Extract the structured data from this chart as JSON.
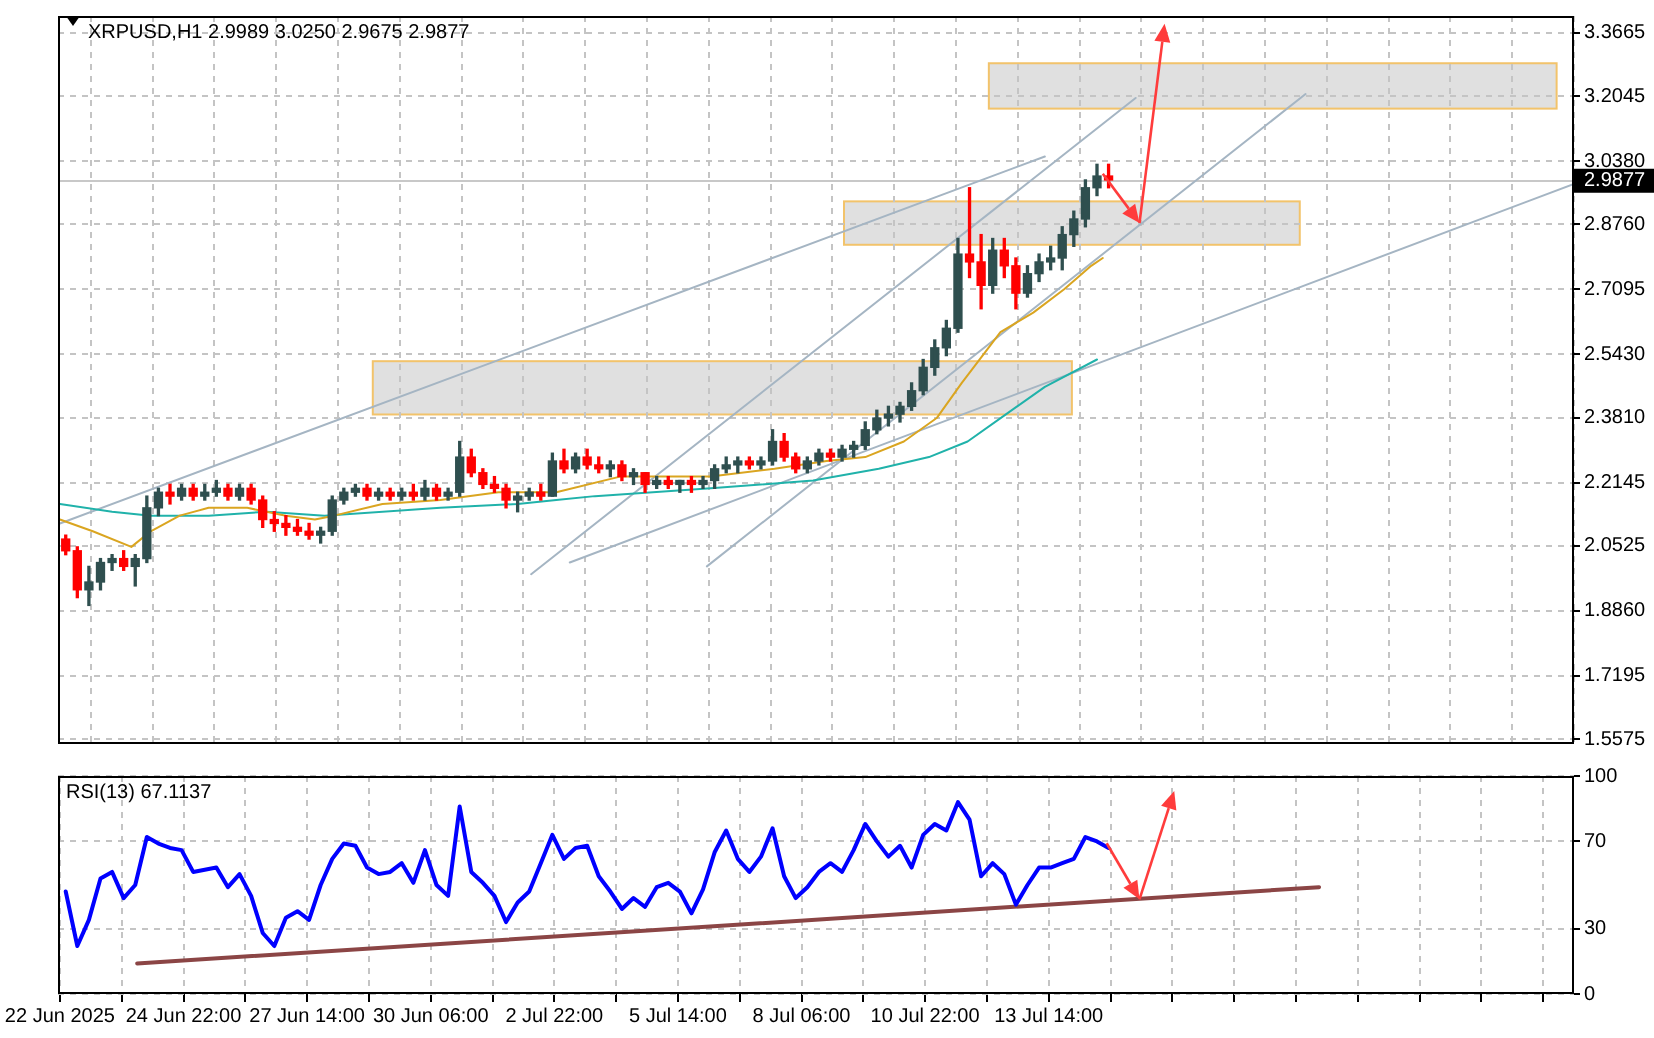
{
  "chart_data": [
    {
      "type": "candlestick",
      "title": "XRPUSD,H1 2.9989 3.0250 2.9675 2.9877",
      "x": [
        "2025-06-22T09:00",
        "2025-06-22T15:00",
        "2025-06-22T21:00",
        "2025-06-23T03:00",
        "2025-06-23T09:00",
        "2025-06-23T15:00",
        "2025-06-23T21:00",
        "2025-06-24T03:00",
        "2025-06-24T09:00",
        "2025-06-24T15:00",
        "2025-06-24T21:00",
        "2025-06-25T03:00",
        "2025-06-25T09:00",
        "2025-06-25T15:00",
        "2025-06-25T21:00",
        "2025-06-26T03:00",
        "2025-06-26T09:00",
        "2025-06-26T15:00",
        "2025-06-26T21:00",
        "2025-06-27T03:00",
        "2025-06-27T09:00",
        "2025-06-27T15:00",
        "2025-06-27T21:00",
        "2025-06-28T03:00",
        "2025-06-28T09:00",
        "2025-06-28T15:00",
        "2025-06-28T21:00",
        "2025-06-29T03:00",
        "2025-06-29T09:00",
        "2025-06-29T15:00",
        "2025-06-29T21:00",
        "2025-06-30T03:00",
        "2025-06-30T09:00",
        "2025-06-30T15:00",
        "2025-06-30T21:00",
        "2025-07-01T03:00",
        "2025-07-01T09:00",
        "2025-07-01T15:00",
        "2025-07-01T21:00",
        "2025-07-02T03:00",
        "2025-07-02T09:00",
        "2025-07-02T15:00",
        "2025-07-02T21:00",
        "2025-07-03T03:00",
        "2025-07-03T09:00",
        "2025-07-03T15:00",
        "2025-07-03T21:00",
        "2025-07-04T03:00",
        "2025-07-04T09:00",
        "2025-07-04T15:00",
        "2025-07-04T21:00",
        "2025-07-05T03:00",
        "2025-07-05T09:00",
        "2025-07-05T15:00",
        "2025-07-05T21:00",
        "2025-07-06T03:00",
        "2025-07-06T09:00",
        "2025-07-06T15:00",
        "2025-07-06T21:00",
        "2025-07-07T03:00",
        "2025-07-07T09:00",
        "2025-07-07T15:00",
        "2025-07-07T21:00",
        "2025-07-08T03:00",
        "2025-07-08T09:00",
        "2025-07-08T15:00",
        "2025-07-08T21:00",
        "2025-07-09T03:00",
        "2025-07-09T09:00",
        "2025-07-09T15:00",
        "2025-07-09T21:00",
        "2025-07-10T03:00",
        "2025-07-10T09:00",
        "2025-07-10T15:00",
        "2025-07-10T21:00",
        "2025-07-11T03:00",
        "2025-07-11T09:00",
        "2025-07-11T15:00",
        "2025-07-11T21:00",
        "2025-07-12T03:00",
        "2025-07-12T09:00",
        "2025-07-12T15:00",
        "2025-07-12T21:00",
        "2025-07-13T03:00",
        "2025-07-13T09:00",
        "2025-07-13T15:00",
        "2025-07-13T21:00",
        "2025-07-14T03:00",
        "2025-07-14T09:00",
        "2025-07-14T15:00",
        "2025-07-14T21:00"
      ],
      "ohlc": [
        [
          2.07,
          2.08,
          2.03,
          2.04
        ],
        [
          2.04,
          2.05,
          1.92,
          1.94
        ],
        [
          1.94,
          2.0,
          1.9,
          1.96
        ],
        [
          1.96,
          2.02,
          1.94,
          2.01
        ],
        [
          2.01,
          2.03,
          1.99,
          2.02
        ],
        [
          2.02,
          2.04,
          1.99,
          2.0
        ],
        [
          2.0,
          2.03,
          1.95,
          2.02
        ],
        [
          2.02,
          2.18,
          2.01,
          2.15
        ],
        [
          2.15,
          2.2,
          2.13,
          2.19
        ],
        [
          2.19,
          2.21,
          2.16,
          2.18
        ],
        [
          2.18,
          2.21,
          2.17,
          2.2
        ],
        [
          2.2,
          2.21,
          2.17,
          2.18
        ],
        [
          2.18,
          2.21,
          2.17,
          2.19
        ],
        [
          2.19,
          2.22,
          2.18,
          2.2
        ],
        [
          2.2,
          2.21,
          2.17,
          2.18
        ],
        [
          2.18,
          2.21,
          2.17,
          2.2
        ],
        [
          2.2,
          2.21,
          2.16,
          2.17
        ],
        [
          2.17,
          2.18,
          2.1,
          2.12
        ],
        [
          2.12,
          2.14,
          2.09,
          2.11
        ],
        [
          2.11,
          2.13,
          2.08,
          2.1
        ],
        [
          2.1,
          2.12,
          2.08,
          2.09
        ],
        [
          2.09,
          2.11,
          2.07,
          2.08
        ],
        [
          2.08,
          2.1,
          2.06,
          2.09
        ],
        [
          2.09,
          2.18,
          2.08,
          2.17
        ],
        [
          2.17,
          2.2,
          2.16,
          2.19
        ],
        [
          2.19,
          2.21,
          2.18,
          2.2
        ],
        [
          2.2,
          2.21,
          2.17,
          2.18
        ],
        [
          2.18,
          2.2,
          2.17,
          2.19
        ],
        [
          2.19,
          2.2,
          2.17,
          2.18
        ],
        [
          2.18,
          2.2,
          2.17,
          2.19
        ],
        [
          2.19,
          2.21,
          2.17,
          2.18
        ],
        [
          2.18,
          2.22,
          2.17,
          2.2
        ],
        [
          2.2,
          2.21,
          2.17,
          2.18
        ],
        [
          2.18,
          2.2,
          2.17,
          2.19
        ],
        [
          2.19,
          2.32,
          2.18,
          2.28
        ],
        [
          2.28,
          2.3,
          2.23,
          2.24
        ],
        [
          2.24,
          2.25,
          2.2,
          2.21
        ],
        [
          2.21,
          2.23,
          2.19,
          2.2
        ],
        [
          2.2,
          2.21,
          2.15,
          2.17
        ],
        [
          2.17,
          2.19,
          2.14,
          2.18
        ],
        [
          2.18,
          2.2,
          2.17,
          2.19
        ],
        [
          2.19,
          2.21,
          2.17,
          2.18
        ],
        [
          2.18,
          2.29,
          2.18,
          2.27
        ],
        [
          2.27,
          2.3,
          2.24,
          2.25
        ],
        [
          2.25,
          2.29,
          2.24,
          2.28
        ],
        [
          2.28,
          2.3,
          2.25,
          2.26
        ],
        [
          2.26,
          2.28,
          2.24,
          2.25
        ],
        [
          2.25,
          2.27,
          2.23,
          2.26
        ],
        [
          2.26,
          2.27,
          2.22,
          2.23
        ],
        [
          2.23,
          2.25,
          2.21,
          2.24
        ],
        [
          2.24,
          2.24,
          2.19,
          2.21
        ],
        [
          2.21,
          2.23,
          2.2,
          2.22
        ],
        [
          2.22,
          2.23,
          2.2,
          2.21
        ],
        [
          2.21,
          2.22,
          2.19,
          2.22
        ],
        [
          2.22,
          2.23,
          2.19,
          2.21
        ],
        [
          2.21,
          2.23,
          2.2,
          2.22
        ],
        [
          2.22,
          2.26,
          2.2,
          2.25
        ],
        [
          2.25,
          2.28,
          2.24,
          2.26
        ],
        [
          2.26,
          2.28,
          2.24,
          2.27
        ],
        [
          2.27,
          2.28,
          2.25,
          2.26
        ],
        [
          2.26,
          2.28,
          2.25,
          2.27
        ],
        [
          2.27,
          2.35,
          2.26,
          2.32
        ],
        [
          2.32,
          2.34,
          2.27,
          2.28
        ],
        [
          2.28,
          2.29,
          2.24,
          2.25
        ],
        [
          2.25,
          2.28,
          2.24,
          2.27
        ],
        [
          2.27,
          2.3,
          2.26,
          2.29
        ],
        [
          2.29,
          2.3,
          2.27,
          2.28
        ],
        [
          2.28,
          2.31,
          2.27,
          2.3
        ],
        [
          2.3,
          2.32,
          2.28,
          2.31
        ],
        [
          2.31,
          2.37,
          2.3,
          2.35
        ],
        [
          2.35,
          2.4,
          2.34,
          2.38
        ],
        [
          2.38,
          2.41,
          2.36,
          2.39
        ],
        [
          2.39,
          2.42,
          2.37,
          2.41
        ],
        [
          2.41,
          2.47,
          2.4,
          2.45
        ],
        [
          2.45,
          2.53,
          2.44,
          2.51
        ],
        [
          2.51,
          2.58,
          2.49,
          2.56
        ],
        [
          2.56,
          2.63,
          2.54,
          2.61
        ],
        [
          2.61,
          2.84,
          2.6,
          2.8
        ],
        [
          2.8,
          2.97,
          2.74,
          2.78
        ],
        [
          2.78,
          2.85,
          2.66,
          2.72
        ],
        [
          2.72,
          2.84,
          2.7,
          2.81
        ],
        [
          2.81,
          2.84,
          2.74,
          2.77
        ],
        [
          2.77,
          2.79,
          2.66,
          2.7
        ],
        [
          2.7,
          2.77,
          2.69,
          2.75
        ],
        [
          2.75,
          2.8,
          2.73,
          2.78
        ],
        [
          2.78,
          2.82,
          2.76,
          2.79
        ],
        [
          2.79,
          2.87,
          2.76,
          2.85
        ],
        [
          2.85,
          2.91,
          2.82,
          2.89
        ],
        [
          2.89,
          2.99,
          2.87,
          2.97
        ],
        [
          2.97,
          3.03,
          2.95,
          3.0
        ],
        [
          3.0,
          3.03,
          2.97,
          2.99
        ]
      ],
      "colors": [
        "#ff0000",
        "#ff0000",
        "#2f4f4f",
        "#2f4f4f",
        "#2f4f4f",
        "#ff0000",
        "#2f4f4f",
        "#2f4f4f",
        "#2f4f4f",
        "#ff0000",
        "#2f4f4f",
        "#ff0000",
        "#2f4f4f",
        "#2f4f4f",
        "#ff0000",
        "#2f4f4f",
        "#ff0000",
        "#ff0000",
        "#ff0000",
        "#ff0000",
        "#ff0000",
        "#ff0000",
        "#2f4f4f",
        "#2f4f4f",
        "#2f4f4f",
        "#2f4f4f",
        "#ff0000",
        "#2f4f4f",
        "#ff0000",
        "#2f4f4f",
        "#ff0000",
        "#2f4f4f",
        "#ff0000",
        "#2f4f4f",
        "#2f4f4f",
        "#ff0000",
        "#ff0000",
        "#ff0000",
        "#ff0000",
        "#2f4f4f",
        "#2f4f4f",
        "#ff0000",
        "#2f4f4f",
        "#ff0000",
        "#2f4f4f",
        "#ff0000",
        "#ff0000",
        "#2f4f4f",
        "#ff0000",
        "#2f4f4f",
        "#ff0000",
        "#2f4f4f",
        "#ff0000",
        "#2f4f4f",
        "#ff0000",
        "#2f4f4f",
        "#2f4f4f",
        "#2f4f4f",
        "#2f4f4f",
        "#ff0000",
        "#2f4f4f",
        "#2f4f4f",
        "#ff0000",
        "#ff0000",
        "#2f4f4f",
        "#2f4f4f",
        "#ff0000",
        "#2f4f4f",
        "#2f4f4f",
        "#2f4f4f",
        "#2f4f4f",
        "#2f4f4f",
        "#2f4f4f",
        "#2f4f4f",
        "#2f4f4f",
        "#2f4f4f",
        "#2f4f4f",
        "#2f4f4f",
        "#ff0000",
        "#ff0000",
        "#2f4f4f",
        "#ff0000",
        "#ff0000",
        "#2f4f4f",
        "#2f4f4f",
        "#2f4f4f",
        "#2f4f4f",
        "#2f4f4f",
        "#2f4f4f",
        "#2f4f4f",
        "#ff0000"
      ],
      "series": [
        {
          "type": "line",
          "color": "#daa520",
          "x": [
            "2025-06-22T06:00",
            "2025-06-22T23:00",
            "2025-06-23T19:00",
            "2025-06-24T05:00",
            "2025-06-24T20:00",
            "2025-06-25T11:00",
            "2025-06-26T07:00",
            "2025-06-27T03:00",
            "2025-06-27T18:00",
            "2025-06-28T04:00",
            "2025-06-29T05:00",
            "2025-06-30T11:00",
            "2025-07-01T17:00",
            "2025-07-02T23:00",
            "2025-07-04T08:00",
            "2025-07-06T07:00",
            "2025-07-07T16:00",
            "2025-07-08T19:00",
            "2025-07-09T15:00",
            "2025-07-10T11:00",
            "2025-07-11T04:00",
            "2025-07-11T17:00",
            "2025-07-12T13:00",
            "2025-07-13T06:00",
            "2025-07-13T22:00",
            "2025-07-14T12:00",
            "2025-07-14T18:00"
          ],
          "values": [
            2.12,
            2.09,
            2.05,
            2.09,
            2.13,
            2.15,
            2.15,
            2.13,
            2.12,
            2.13,
            2.16,
            2.17,
            2.19,
            2.19,
            2.23,
            2.23,
            2.25,
            2.27,
            2.28,
            2.32,
            2.38,
            2.47,
            2.6,
            2.65,
            2.71,
            2.77,
            2.79
          ]
        },
        {
          "type": "line",
          "color": "#20b2aa",
          "x": [
            "2025-06-22T06:00",
            "2025-06-23T09:00",
            "2025-06-24T05:00",
            "2025-06-25T11:00",
            "2025-06-26T17:00",
            "2025-06-27T23:00",
            "2025-06-30T11:00",
            "2025-07-02T03:00",
            "2025-07-02T23:00",
            "2025-07-03T19:00",
            "2025-07-06T07:00",
            "2025-07-08T12:00",
            "2025-07-09T22:00",
            "2025-07-11T00:00",
            "2025-07-11T20:00",
            "2025-07-12T16:00",
            "2025-07-13T12:00",
            "2025-07-14T15:00"
          ],
          "values": [
            2.16,
            2.14,
            2.13,
            2.13,
            2.14,
            2.13,
            2.15,
            2.16,
            2.17,
            2.18,
            2.2,
            2.22,
            2.25,
            2.28,
            2.32,
            2.39,
            2.46,
            2.53
          ]
        },
        {
          "type": "line",
          "color": "#a5b5c3",
          "x": [
            "2025-06-22T06:00",
            "2025-07-13T12:00"
          ],
          "values": [
            2.11,
            3.05
          ]
        },
        {
          "type": "line",
          "color": "#a5b5c3",
          "x": [
            "2025-07-02T10:00",
            "2025-07-15T11:00"
          ],
          "values": [
            1.98,
            3.2
          ]
        },
        {
          "type": "line",
          "color": "#a5b5c3",
          "x": [
            "2025-07-06T05:00",
            "2025-07-19T03:00"
          ],
          "values": [
            2.0,
            3.21
          ]
        },
        {
          "type": "line",
          "color": "#a5b5c3",
          "x": [
            "2025-07-03T06:00",
            "2025-07-24T22:00"
          ],
          "values": [
            2.01,
            2.98
          ]
        }
      ],
      "xlim": [
        "2025-06-22T05:00",
        "2025-07-24T22:00"
      ],
      "ylim": [
        1.545,
        3.41
      ],
      "yticks": [
        1.5575,
        1.7195,
        {
          "value": 1.886,
          "label": "1.8860"
        },
        2.0525,
        2.2145,
        {
          "value": 2.381,
          "label": "2.3810"
        },
        {
          "value": 2.543,
          "label": "2.5430"
        },
        2.7095,
        {
          "value": 2.876,
          "label": "2.8760"
        },
        {
          "value": 3.038,
          "label": "3.0380"
        },
        3.2045,
        3.3665
      ],
      "ref_lines": [
        {
          "axis": "y",
          "value": 2.9877,
          "label": "2.9877",
          "color": "#c8c8c8"
        }
      ],
      "grid": true,
      "tick_labels": "y"
    },
    {
      "type": "line",
      "title": "RSI(13) 67.1137",
      "x": [
        "2025-06-22T09:00",
        "2025-06-22T15:00",
        "2025-06-22T21:00",
        "2025-06-23T03:00",
        "2025-06-23T09:00",
        "2025-06-23T15:00",
        "2025-06-23T21:00",
        "2025-06-24T03:00",
        "2025-06-24T09:00",
        "2025-06-24T15:00",
        "2025-06-24T21:00",
        "2025-06-25T03:00",
        "2025-06-25T09:00",
        "2025-06-25T15:00",
        "2025-06-25T21:00",
        "2025-06-26T03:00",
        "2025-06-26T09:00",
        "2025-06-26T15:00",
        "2025-06-26T21:00",
        "2025-06-27T03:00",
        "2025-06-27T09:00",
        "2025-06-27T15:00",
        "2025-06-27T21:00",
        "2025-06-28T03:00",
        "2025-06-28T09:00",
        "2025-06-28T15:00",
        "2025-06-28T21:00",
        "2025-06-29T03:00",
        "2025-06-29T09:00",
        "2025-06-29T15:00",
        "2025-06-29T21:00",
        "2025-06-30T03:00",
        "2025-06-30T09:00",
        "2025-06-30T15:00",
        "2025-06-30T21:00",
        "2025-07-01T03:00",
        "2025-07-01T09:00",
        "2025-07-01T15:00",
        "2025-07-01T21:00",
        "2025-07-02T03:00",
        "2025-07-02T09:00",
        "2025-07-02T15:00",
        "2025-07-02T21:00",
        "2025-07-03T03:00",
        "2025-07-03T09:00",
        "2025-07-03T15:00",
        "2025-07-03T21:00",
        "2025-07-04T03:00",
        "2025-07-04T09:00",
        "2025-07-04T15:00",
        "2025-07-04T21:00",
        "2025-07-05T03:00",
        "2025-07-05T09:00",
        "2025-07-05T15:00",
        "2025-07-05T21:00",
        "2025-07-06T03:00",
        "2025-07-06T09:00",
        "2025-07-06T15:00",
        "2025-07-06T21:00",
        "2025-07-07T03:00",
        "2025-07-07T09:00",
        "2025-07-07T15:00",
        "2025-07-07T21:00",
        "2025-07-08T03:00",
        "2025-07-08T09:00",
        "2025-07-08T15:00",
        "2025-07-08T21:00",
        "2025-07-09T03:00",
        "2025-07-09T09:00",
        "2025-07-09T15:00",
        "2025-07-09T21:00",
        "2025-07-10T03:00",
        "2025-07-10T09:00",
        "2025-07-10T15:00",
        "2025-07-10T21:00",
        "2025-07-11T03:00",
        "2025-07-11T09:00",
        "2025-07-11T15:00",
        "2025-07-11T21:00",
        "2025-07-12T03:00",
        "2025-07-12T09:00",
        "2025-07-12T15:00",
        "2025-07-12T21:00",
        "2025-07-13T03:00",
        "2025-07-13T09:00",
        "2025-07-13T15:00",
        "2025-07-13T21:00",
        "2025-07-14T03:00",
        "2025-07-14T09:00",
        "2025-07-14T15:00",
        "2025-07-14T21:00"
      ],
      "series": [
        {
          "color": "#0000ff",
          "values": [
            47,
            22,
            34,
            53,
            56,
            44,
            50,
            72,
            69,
            67,
            66,
            56,
            57,
            58,
            49,
            55,
            45,
            28,
            22,
            35,
            38,
            34,
            50,
            62,
            69,
            68,
            58,
            55,
            56,
            60,
            51,
            66,
            50,
            45,
            86,
            56,
            51,
            45,
            33,
            42,
            47,
            60,
            73,
            62,
            67,
            68,
            54,
            47,
            39,
            44,
            40,
            49,
            51,
            47,
            37,
            48,
            65,
            75,
            62,
            56,
            63,
            76,
            54,
            44,
            49,
            56,
            60,
            56,
            66,
            78,
            70,
            63,
            68,
            58,
            73,
            78,
            75,
            88,
            80,
            54,
            60,
            55,
            41,
            50,
            58,
            58,
            60,
            62,
            72,
            70,
            67
          ]
        },
        {
          "type": "line",
          "color": "#8b4545",
          "x": [
            "2025-06-23T22:00",
            "2025-07-19T10:00"
          ],
          "values": [
            14,
            49
          ]
        }
      ],
      "xlim": [
        "2025-06-22T05:00",
        "2025-07-24T22:00"
      ],
      "ylim": [
        0,
        100
      ],
      "xticks": [
        {
          "value": "2025-06-22T06:00",
          "label": "22 Jun 2025"
        },
        {
          "value": "2025-06-23T14:00",
          "label": null
        },
        {
          "value": "2025-06-24T22:00",
          "label": "24 Jun 22:00"
        },
        {
          "value": "2025-06-26T06:00",
          "label": null
        },
        {
          "value": "2025-06-27T14:00",
          "label": "27 Jun 14:00"
        },
        {
          "value": "2025-06-28T22:00",
          "label": null
        },
        {
          "value": "2025-06-30T06:00",
          "label": "30 Jun 06:00"
        },
        {
          "value": "2025-07-01T14:00",
          "label": null
        },
        {
          "value": "2025-07-02T22:00",
          "label": "2 Jul 22:00"
        },
        {
          "value": "2025-07-04T06:00",
          "label": null
        },
        {
          "value": "2025-07-05T14:00",
          "label": "5 Jul 14:00"
        },
        {
          "value": "2025-07-06T22:00",
          "label": null
        },
        {
          "value": "2025-07-08T06:00",
          "label": "8 Jul 06:00"
        },
        {
          "value": "2025-07-09T14:00",
          "label": null
        },
        {
          "value": "2025-07-10T22:00",
          "label": "10 Jul 22:00"
        },
        {
          "value": "2025-07-12T06:00",
          "label": null
        },
        {
          "value": "2025-07-13T14:00",
          "label": "13 Jul 14:00"
        },
        {
          "value": "2025-07-14T22:00",
          "label": null
        },
        {
          "value": "2025-07-16T06:00",
          "label": null
        },
        {
          "value": "2025-07-17T14:00",
          "label": null
        },
        {
          "value": "2025-07-18T22:00",
          "label": null
        },
        {
          "value": "2025-07-20T06:00",
          "label": null
        },
        {
          "value": "2025-07-21T14:00",
          "label": null
        },
        {
          "value": "2025-07-22T22:00",
          "label": null
        },
        {
          "value": "2025-07-24T06:00",
          "label": null
        }
      ],
      "yticks": [
        0,
        30,
        70,
        100
      ],
      "grid": true
    }
  ]
}
